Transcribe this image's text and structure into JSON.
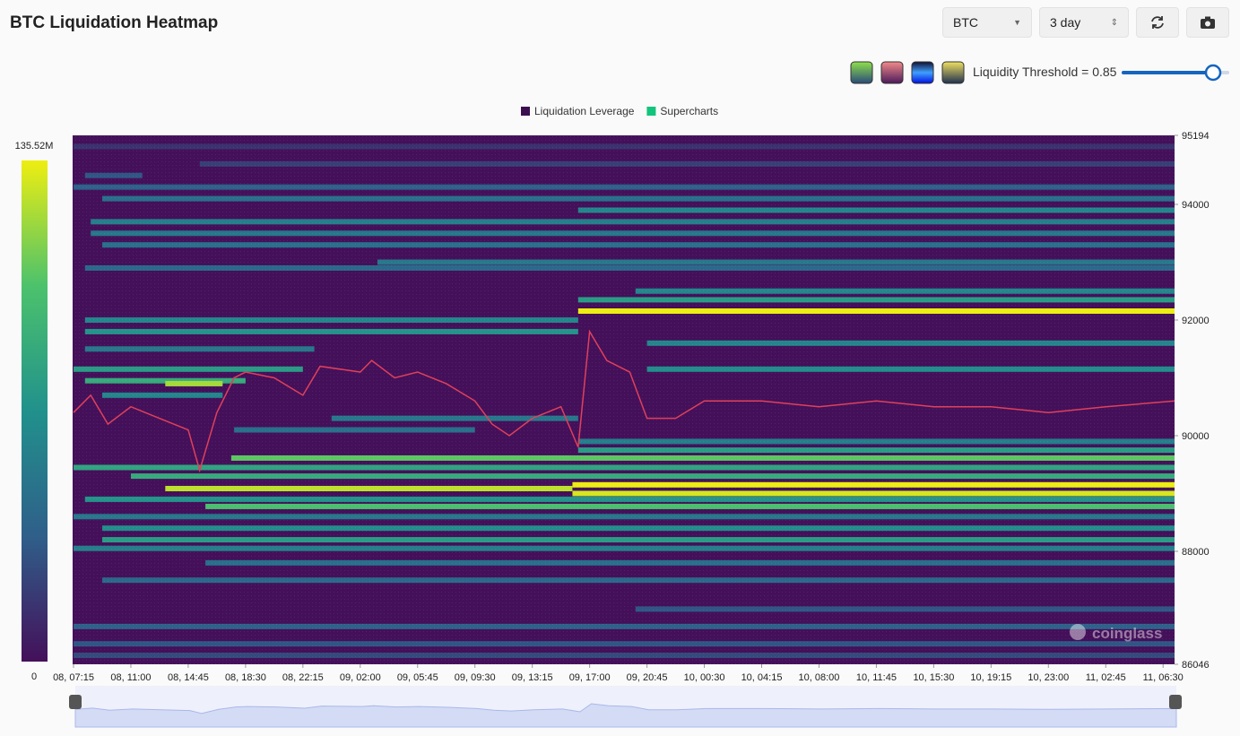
{
  "header": {
    "title": "BTC Liquidation Heatmap",
    "symbol": "BTC",
    "range": "3 day",
    "threshold_label": "Liquidity Threshold = 0.85",
    "threshold": 0.85
  },
  "chart_data": {
    "type": "heatmap",
    "series": [
      {
        "name": "Liquidation Leverage",
        "color": "#3b0f4f"
      },
      {
        "name": "Supercharts",
        "color": "#12c47c"
      }
    ],
    "colorscale": [
      "#44105a",
      "#2f5f8a",
      "#21918c",
      "#4cc26c",
      "#eeee10"
    ],
    "colorbar": {
      "max": {
        "value": 135520000,
        "label": "135.52M"
      },
      "min": 0
    },
    "xlim": [
      0,
      19.2
    ],
    "xticks": [
      {
        "value": 0,
        "label": "08, 07:15"
      },
      {
        "value": 1,
        "label": "08, 11:00"
      },
      {
        "value": 2,
        "label": "08, 14:45"
      },
      {
        "value": 3,
        "label": "08, 18:30"
      },
      {
        "value": 4,
        "label": "08, 22:15"
      },
      {
        "value": 5,
        "label": "09, 02:00"
      },
      {
        "value": 6,
        "label": "09, 05:45"
      },
      {
        "value": 7,
        "label": "09, 09:30"
      },
      {
        "value": 8,
        "label": "09, 13:15"
      },
      {
        "value": 9,
        "label": "09, 17:00"
      },
      {
        "value": 10,
        "label": "09, 20:45"
      },
      {
        "value": 11,
        "label": "10, 00:30"
      },
      {
        "value": 12,
        "label": "10, 04:15"
      },
      {
        "value": 13,
        "label": "10, 08:00"
      },
      {
        "value": 14,
        "label": "10, 11:45"
      },
      {
        "value": 15,
        "label": "10, 15:30"
      },
      {
        "value": 16,
        "label": "10, 19:15"
      },
      {
        "value": 17,
        "label": "10, 23:00"
      },
      {
        "value": 18,
        "label": "11, 02:45"
      },
      {
        "value": 19,
        "label": "11, 06:30"
      }
    ],
    "ylim": [
      86046,
      95194
    ],
    "yticks": [
      86046,
      88000,
      90000,
      92000,
      94000,
      95194
    ],
    "bands": [
      {
        "price": 95000,
        "start": 0,
        "end": 19.2,
        "value": 15000000
      },
      {
        "price": 94700,
        "start": 2.2,
        "end": 19.2,
        "value": 20000000
      },
      {
        "price": 94500,
        "start": 0.2,
        "end": 1.2,
        "value": 30000000
      },
      {
        "price": 94300,
        "start": 0,
        "end": 19.2,
        "value": 35000000
      },
      {
        "price": 94100,
        "start": 0.5,
        "end": 19.2,
        "value": 45000000
      },
      {
        "price": 93900,
        "start": 8.8,
        "end": 19.2,
        "value": 60000000
      },
      {
        "price": 93700,
        "start": 0.3,
        "end": 19.2,
        "value": 55000000
      },
      {
        "price": 93500,
        "start": 0.3,
        "end": 19.2,
        "value": 50000000
      },
      {
        "price": 93300,
        "start": 0.5,
        "end": 19.2,
        "value": 45000000
      },
      {
        "price": 93000,
        "start": 5.3,
        "end": 19.2,
        "value": 50000000
      },
      {
        "price": 92900,
        "start": 0.2,
        "end": 19.2,
        "value": 40000000
      },
      {
        "price": 92500,
        "start": 9.8,
        "end": 19.2,
        "value": 60000000
      },
      {
        "price": 92350,
        "start": 8.8,
        "end": 19.2,
        "value": 75000000
      },
      {
        "price": 92155,
        "start": 8.8,
        "end": 19.2,
        "value": 135000000
      },
      {
        "price": 92000,
        "start": 0.2,
        "end": 8.8,
        "value": 60000000
      },
      {
        "price": 91800,
        "start": 0.2,
        "end": 8.8,
        "value": 70000000
      },
      {
        "price": 91600,
        "start": 10,
        "end": 19.2,
        "value": 60000000
      },
      {
        "price": 91500,
        "start": 0.2,
        "end": 4.2,
        "value": 50000000
      },
      {
        "price": 91150,
        "start": 0,
        "end": 4,
        "value": 75000000
      },
      {
        "price": 91150,
        "start": 10,
        "end": 19.2,
        "value": 65000000
      },
      {
        "price": 90950,
        "start": 0.2,
        "end": 3,
        "value": 85000000
      },
      {
        "price": 90900,
        "start": 1.6,
        "end": 2.6,
        "value": 120000000
      },
      {
        "price": 90700,
        "start": 0.5,
        "end": 2.6,
        "value": 60000000
      },
      {
        "price": 90300,
        "start": 4.5,
        "end": 8.8,
        "value": 50000000
      },
      {
        "price": 90100,
        "start": 2.8,
        "end": 7,
        "value": 45000000
      },
      {
        "price": 89900,
        "start": 8.8,
        "end": 19.2,
        "value": 55000000
      },
      {
        "price": 89750,
        "start": 8.8,
        "end": 19.2,
        "value": 75000000
      },
      {
        "price": 89613,
        "start": 2.75,
        "end": 19.2,
        "value": 105000000
      },
      {
        "price": 89450,
        "start": 0,
        "end": 19.2,
        "value": 80000000
      },
      {
        "price": 89300,
        "start": 1,
        "end": 19.2,
        "value": 85000000
      },
      {
        "price": 89150,
        "start": 8.7,
        "end": 19.2,
        "value": 135000000
      },
      {
        "price": 89085,
        "start": 1.6,
        "end": 8.7,
        "value": 125000000
      },
      {
        "price": 89000,
        "start": 8.7,
        "end": 19.2,
        "value": 130000000
      },
      {
        "price": 88900,
        "start": 0.2,
        "end": 19.2,
        "value": 70000000
      },
      {
        "price": 88776,
        "start": 2.3,
        "end": 19.2,
        "value": 100000000
      },
      {
        "price": 88600,
        "start": 0,
        "end": 19.2,
        "value": 50000000
      },
      {
        "price": 88400,
        "start": 0.5,
        "end": 19.2,
        "value": 65000000
      },
      {
        "price": 88200,
        "start": 0.5,
        "end": 19.2,
        "value": 75000000
      },
      {
        "price": 88050,
        "start": 0,
        "end": 19.2,
        "value": 55000000
      },
      {
        "price": 87800,
        "start": 2.3,
        "end": 19.2,
        "value": 45000000
      },
      {
        "price": 87500,
        "start": 0.5,
        "end": 19.2,
        "value": 40000000
      },
      {
        "price": 87000,
        "start": 9.8,
        "end": 19.2,
        "value": 30000000
      },
      {
        "price": 86700,
        "start": 0,
        "end": 19.2,
        "value": 35000000
      },
      {
        "price": 86400,
        "start": 0,
        "end": 19.2,
        "value": 30000000
      },
      {
        "price": 86200,
        "start": 0,
        "end": 19.2,
        "value": 25000000
      }
    ],
    "price": {
      "color": "#e0405a",
      "x": [
        0,
        0.3,
        0.6,
        1,
        1.5,
        2,
        2.2,
        2.5,
        2.8,
        3,
        3.5,
        4,
        4.3,
        5,
        5.2,
        5.6,
        6,
        6.5,
        7,
        7.3,
        7.6,
        8,
        8.5,
        8.8,
        9,
        9.3,
        9.7,
        10,
        10.5,
        11,
        12,
        13,
        14,
        15,
        16,
        17,
        18,
        19.2
      ],
      "values": [
        90400,
        90700,
        90200,
        90500,
        90300,
        90100,
        89400,
        90400,
        91000,
        91100,
        91000,
        90700,
        91200,
        91100,
        91300,
        91000,
        91100,
        90900,
        90600,
        90200,
        90000,
        90300,
        90500,
        89800,
        91800,
        91300,
        91100,
        90300,
        90300,
        90600,
        90600,
        90500,
        90600,
        90500,
        90500,
        90400,
        90500,
        90600
      ]
    },
    "watermark": "coinglass"
  }
}
